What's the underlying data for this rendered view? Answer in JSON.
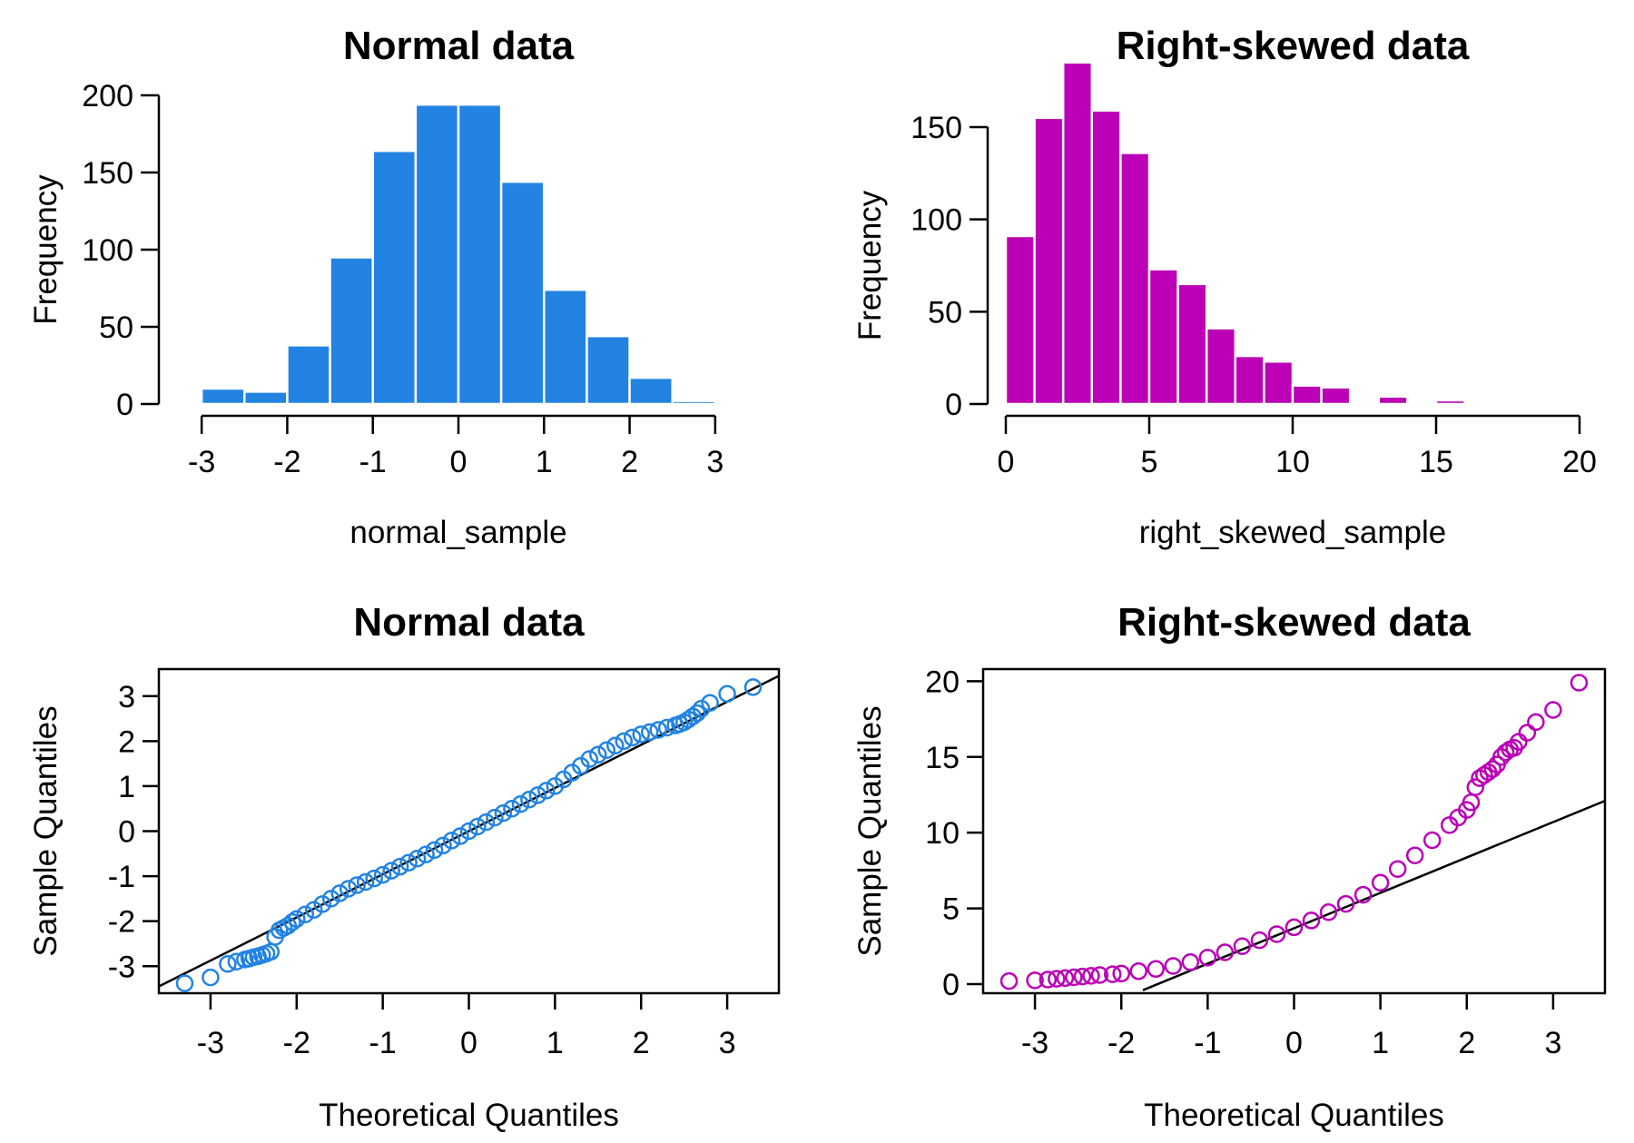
{
  "chart_data": [
    {
      "type": "bar",
      "title": "Normal data",
      "xlabel": "normal_sample",
      "ylabel": "Frequency",
      "color": "#2283E2",
      "bin_edges": [
        -3.5,
        -3,
        -2.5,
        -2,
        -1.5,
        -1,
        -0.5,
        0,
        0.5,
        1,
        1.5,
        2,
        2.5,
        3,
        3.5
      ],
      "values": [
        1,
        10,
        8,
        38,
        95,
        164,
        194,
        194,
        144,
        74,
        44,
        17,
        2,
        1
      ],
      "xticks": [
        -3,
        -2,
        -1,
        0,
        1,
        2,
        3
      ],
      "xtick_labels": [
        "-3",
        "-2",
        "-1",
        "0",
        "1",
        "2",
        "3"
      ],
      "yticks": [
        0,
        50,
        100,
        150,
        200
      ],
      "ytick_labels": [
        "0",
        "50",
        "100",
        "150",
        "200"
      ],
      "xlim": [
        -3.5,
        3.5
      ],
      "ylim": [
        0,
        200
      ]
    },
    {
      "type": "bar",
      "title": "Right-skewed data",
      "xlabel": "right_skewed_sample",
      "ylabel": "Frequency",
      "color": "#BB00B6",
      "bin_edges": [
        0,
        1,
        2,
        3,
        4,
        5,
        6,
        7,
        8,
        9,
        10,
        11,
        12,
        13,
        14,
        15,
        16
      ],
      "values": [
        91,
        155,
        185,
        159,
        136,
        73,
        65,
        41,
        26,
        23,
        10,
        9,
        1,
        4,
        1,
        2
      ],
      "xticks": [
        0,
        5,
        10,
        15,
        20
      ],
      "xtick_labels": [
        "0",
        "5",
        "10",
        "15",
        "20"
      ],
      "yticks": [
        0,
        50,
        100,
        150
      ],
      "ytick_labels": [
        "0",
        "50",
        "100",
        "150"
      ],
      "xlim": [
        0,
        20
      ],
      "ylim": [
        0,
        150
      ]
    },
    {
      "type": "scatter",
      "title": "Normal data",
      "xlabel": "Theoretical Quantiles",
      "ylabel": "Sample Quantiles",
      "color": "#2283E2",
      "x": [
        -3.3,
        -3.0,
        -2.8,
        -2.7,
        -2.6,
        -2.55,
        -2.5,
        -2.45,
        -2.4,
        -2.35,
        -2.3,
        -2.25,
        -2.2,
        -2.15,
        -2.1,
        -2.05,
        -2.0,
        -1.9,
        -1.8,
        -1.7,
        -1.6,
        -1.5,
        -1.4,
        -1.3,
        -1.2,
        -1.1,
        -1.0,
        -0.9,
        -0.8,
        -0.7,
        -0.6,
        -0.5,
        -0.4,
        -0.3,
        -0.2,
        -0.1,
        0.0,
        0.1,
        0.2,
        0.3,
        0.4,
        0.5,
        0.6,
        0.7,
        0.8,
        0.9,
        1.0,
        1.1,
        1.2,
        1.3,
        1.4,
        1.5,
        1.6,
        1.7,
        1.8,
        1.9,
        2.0,
        2.1,
        2.2,
        2.3,
        2.4,
        2.45,
        2.5,
        2.55,
        2.6,
        2.65,
        2.7,
        2.8,
        3.0,
        3.3
      ],
      "y": [
        -3.38,
        -3.25,
        -2.95,
        -2.9,
        -2.85,
        -2.83,
        -2.8,
        -2.78,
        -2.75,
        -2.72,
        -2.68,
        -2.35,
        -2.2,
        -2.15,
        -2.1,
        -2.02,
        -1.95,
        -1.85,
        -1.75,
        -1.62,
        -1.5,
        -1.38,
        -1.28,
        -1.2,
        -1.13,
        -1.05,
        -0.97,
        -0.88,
        -0.79,
        -0.7,
        -0.61,
        -0.52,
        -0.42,
        -0.32,
        -0.21,
        -0.11,
        0.0,
        0.1,
        0.2,
        0.3,
        0.4,
        0.5,
        0.6,
        0.7,
        0.8,
        0.9,
        1.0,
        1.15,
        1.3,
        1.45,
        1.6,
        1.7,
        1.8,
        1.9,
        2.0,
        2.08,
        2.15,
        2.2,
        2.25,
        2.3,
        2.35,
        2.38,
        2.42,
        2.48,
        2.55,
        2.62,
        2.72,
        2.85,
        3.05,
        3.2
      ],
      "line": {
        "x": [
          -3.6,
          3.6
        ],
        "y": [
          -3.45,
          3.45
        ]
      },
      "xticks": [
        -3,
        -2,
        -1,
        0,
        1,
        2,
        3
      ],
      "xtick_labels": [
        "-3",
        "-2",
        "-1",
        "0",
        "1",
        "2",
        "3"
      ],
      "yticks": [
        -3,
        -2,
        -1,
        0,
        1,
        2,
        3
      ],
      "ytick_labels": [
        "-3",
        "-2",
        "-1",
        "0",
        "1",
        "2",
        "3"
      ],
      "xlim": [
        -3.6,
        3.6
      ],
      "ylim": [
        -3.6,
        3.6
      ]
    },
    {
      "type": "scatter",
      "title": "Right-skewed data",
      "xlabel": "Theoretical Quantiles",
      "ylabel": "Sample Quantiles",
      "color": "#BB00B6",
      "x": [
        -3.3,
        -3.0,
        -2.85,
        -2.75,
        -2.65,
        -2.55,
        -2.45,
        -2.35,
        -2.25,
        -2.1,
        -2.0,
        -1.8,
        -1.6,
        -1.4,
        -1.2,
        -1.0,
        -0.8,
        -0.6,
        -0.4,
        -0.2,
        0.0,
        0.2,
        0.4,
        0.6,
        0.8,
        1.0,
        1.2,
        1.4,
        1.6,
        1.8,
        1.9,
        2.0,
        2.05,
        2.1,
        2.15,
        2.2,
        2.25,
        2.3,
        2.35,
        2.4,
        2.45,
        2.5,
        2.55,
        2.6,
        2.7,
        2.8,
        3.0,
        3.3
      ],
      "y": [
        0.2,
        0.25,
        0.3,
        0.35,
        0.4,
        0.45,
        0.5,
        0.55,
        0.6,
        0.65,
        0.7,
        0.85,
        1.0,
        1.2,
        1.45,
        1.75,
        2.1,
        2.5,
        2.9,
        3.3,
        3.75,
        4.2,
        4.75,
        5.3,
        5.9,
        6.7,
        7.6,
        8.5,
        9.5,
        10.5,
        11.0,
        11.5,
        12.0,
        13.0,
        13.6,
        13.8,
        14.0,
        14.2,
        14.5,
        15.0,
        15.3,
        15.5,
        15.6,
        16.0,
        16.6,
        17.3,
        18.1,
        19.9
      ],
      "line": {
        "x": [
          -1.75,
          3.6
        ],
        "y": [
          -0.4,
          12.1
        ]
      },
      "xticks": [
        -3,
        -2,
        -1,
        0,
        1,
        2,
        3
      ],
      "xtick_labels": [
        "-3",
        "-2",
        "-1",
        "0",
        "1",
        "2",
        "3"
      ],
      "yticks": [
        0,
        5,
        10,
        15,
        20
      ],
      "ytick_labels": [
        "0",
        "5",
        "10",
        "15",
        "20"
      ],
      "xlim": [
        -3.6,
        3.6
      ],
      "ylim": [
        -0.6,
        20.8
      ]
    }
  ]
}
